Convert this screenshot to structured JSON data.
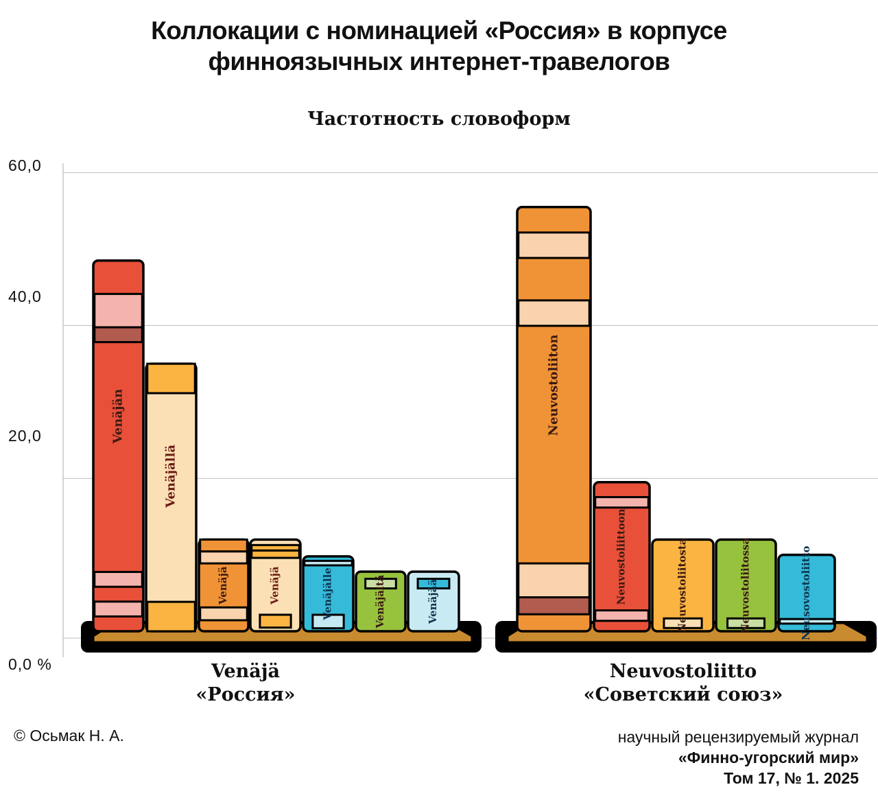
{
  "title_line1": "Коллокации с номинацией «Россия» в корпусе",
  "title_line2": "финноязычных интернет-травелогов",
  "chart_data": {
    "type": "bar",
    "subtitle": "Частотность словоформ",
    "ylim": [
      0,
      60
    ],
    "yticks": [
      "60,0",
      "40,0",
      "20,0",
      "0,0 %"
    ],
    "ytick_values": [
      60,
      40,
      20,
      0
    ],
    "grid": true,
    "groups": [
      {
        "label_fi": "Venäjä",
        "label_ru": "«Россия»",
        "bars": [
          {
            "name": "Venäjän",
            "value": 48.5,
            "color": "#e8503a",
            "accent": "#f5b3ad"
          },
          {
            "name": "Venäjällä",
            "value": 35.0,
            "color": "#fbe0b5",
            "accent": "#fbb441"
          },
          {
            "name": "Venäjä",
            "value": 12.0,
            "color": "#f09336",
            "accent": "#f9d3ae"
          },
          {
            "name": "Venäjä",
            "value": 12.0,
            "color": "#fbe0b5",
            "accent": "#fbb441"
          },
          {
            "name": "Venäjälle",
            "value": 9.8,
            "color": "#35bbd9",
            "accent": "#c5e9f3"
          },
          {
            "name": "Venäjältä",
            "value": 7.8,
            "color": "#97c23e",
            "accent": "#c9dea3"
          },
          {
            "name": "Venäjää",
            "value": 7.8,
            "color": "#c8ebf3",
            "accent": "#35bbd9"
          }
        ]
      },
      {
        "label_fi": "Neuvostoliitto",
        "label_ru": "«Советский союз»",
        "bars": [
          {
            "name": "Neuvostoliiton",
            "value": 55.5,
            "color": "#f09336",
            "accent": "#f9d3ae"
          },
          {
            "name": "Neuvostoliittoon",
            "value": 19.5,
            "color": "#e8503a",
            "accent": "#f5b3ad"
          },
          {
            "name": "Neuvostoliitosta",
            "value": 12.0,
            "color": "#fbb441",
            "accent": "#fbe0b5"
          },
          {
            "name": "Neuvostoliitossa",
            "value": 12.0,
            "color": "#97c23e",
            "accent": "#c9dea3"
          },
          {
            "name": "Neusovostoliitto",
            "value": 10.0,
            "color": "#35bbd9",
            "accent": "#c8ebf3"
          }
        ]
      }
    ]
  },
  "footer": {
    "credit": "© Осьмак Н. А.",
    "journal_line1": "научный рецензируемый журнал",
    "journal_line2": "«Финно-угорский мир»",
    "journal_line3": "Том 17, № 1. 2025"
  },
  "colors": {
    "shelf": "#c98b2f",
    "outline": "#000000",
    "grid": "#bbbbbb"
  }
}
